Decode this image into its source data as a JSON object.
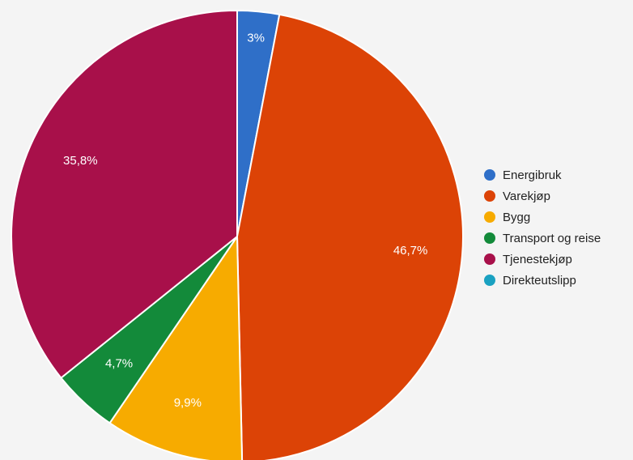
{
  "chart_data": {
    "type": "pie",
    "categories": [
      "Energibruk",
      "Varekjøp",
      "Bygg",
      "Transport og reise",
      "Tjenestekjøp",
      "Direkteutslipp"
    ],
    "values": [
      3,
      46.7,
      9.9,
      4.7,
      35.8,
      0
    ],
    "data_labels": [
      "3%",
      "46,7%",
      "9,9%",
      "4,7%",
      "35,8%",
      ""
    ],
    "colors": [
      "#2f6fc8",
      "#dc4306",
      "#f7ab00",
      "#138a3a",
      "#a8104a",
      "#1aa1c1"
    ],
    "legend_position": "right",
    "start_angle": "top",
    "direction": "clockwise"
  }
}
